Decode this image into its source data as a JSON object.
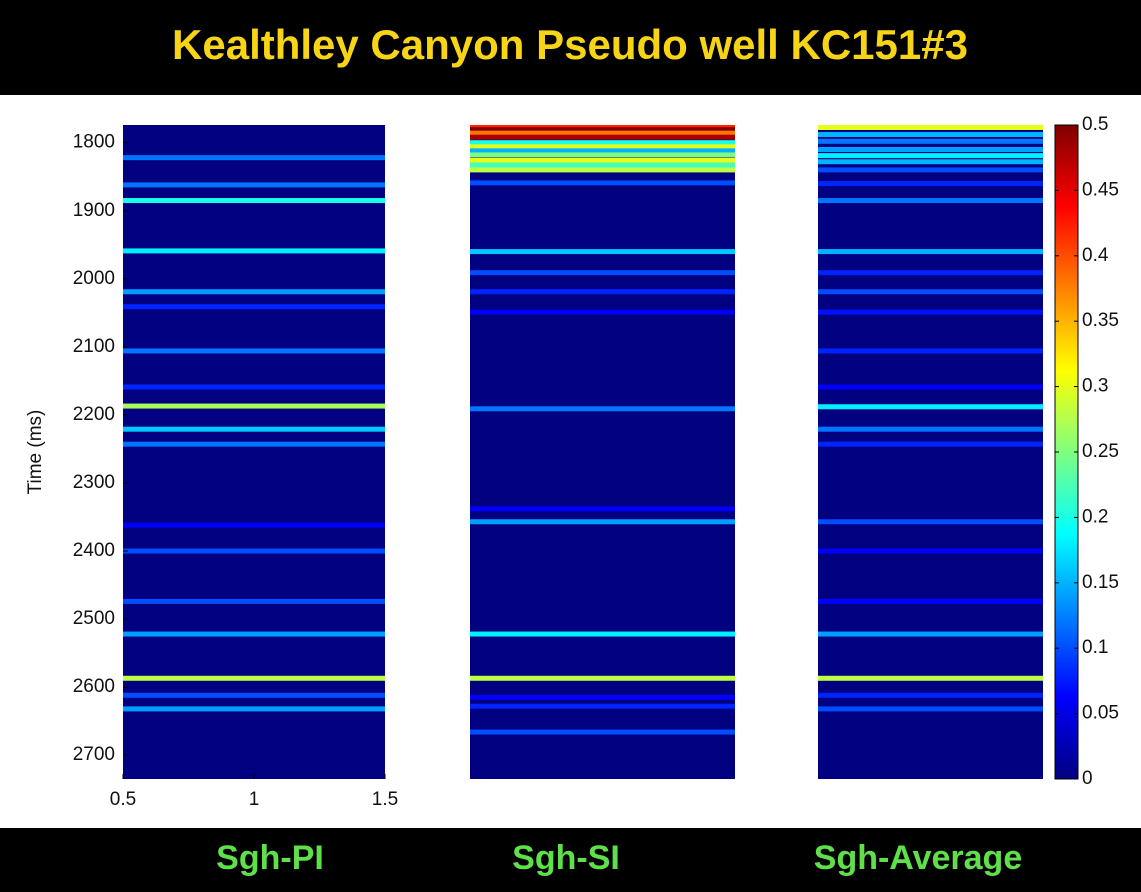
{
  "chart_data": {
    "type": "heatmap",
    "title": "Kealthley Canyon Pseudo well KC151#3",
    "ylabel": "Time (ms)",
    "ylim": [
      1774,
      2735
    ],
    "yticks": [
      1800,
      1900,
      2000,
      2100,
      2200,
      2300,
      2400,
      2500,
      2600,
      2700
    ],
    "xlim": [
      0.5,
      1.5
    ],
    "xticks": [
      0.5,
      1,
      1.5
    ],
    "colormap": "jet",
    "clim": [
      0,
      0.5
    ],
    "cticks": [
      0,
      0.05,
      0.1,
      0.15,
      0.2,
      0.25,
      0.3,
      0.35,
      0.4,
      0.45,
      0.5
    ],
    "series": [
      {
        "name": "Sgh-PI",
        "y": [
          1822,
          1862,
          1885,
          1959,
          2019,
          2041,
          2106,
          2159,
          2187,
          2221,
          2243,
          2362,
          2400,
          2474,
          2522,
          2587,
          2612,
          2632
        ],
        "values": [
          0.12,
          0.12,
          0.2,
          0.18,
          0.14,
          0.08,
          0.12,
          0.08,
          0.27,
          0.16,
          0.12,
          0.06,
          0.1,
          0.1,
          0.14,
          0.28,
          0.1,
          0.14
        ]
      },
      {
        "name": "Sgh-SI",
        "y": [
          1776,
          1781,
          1786,
          1792,
          1800,
          1806,
          1812,
          1818,
          1826,
          1833,
          1840,
          1859,
          1960,
          1991,
          2019,
          2049,
          2191,
          2338,
          2357,
          2522,
          2587,
          2615,
          2628,
          2666
        ],
        "values": [
          0.42,
          0.5,
          0.38,
          0.48,
          0.2,
          0.3,
          0.15,
          0.25,
          0.3,
          0.22,
          0.28,
          0.1,
          0.16,
          0.1,
          0.08,
          0.06,
          0.12,
          0.06,
          0.14,
          0.18,
          0.28,
          0.06,
          0.08,
          0.1
        ]
      },
      {
        "name": "Sgh-Average",
        "y": [
          1776,
          1788,
          1798,
          1810,
          1819,
          1828,
          1840,
          1860,
          1885,
          1960,
          1991,
          2019,
          2049,
          2106,
          2159,
          2188,
          2221,
          2243,
          2357,
          2400,
          2474,
          2522,
          2587,
          2612,
          2632
        ],
        "values": [
          0.3,
          0.15,
          0.12,
          0.14,
          0.18,
          0.15,
          0.1,
          0.08,
          0.12,
          0.15,
          0.08,
          0.1,
          0.07,
          0.08,
          0.06,
          0.18,
          0.12,
          0.08,
          0.1,
          0.06,
          0.06,
          0.14,
          0.28,
          0.08,
          0.1
        ]
      }
    ]
  }
}
